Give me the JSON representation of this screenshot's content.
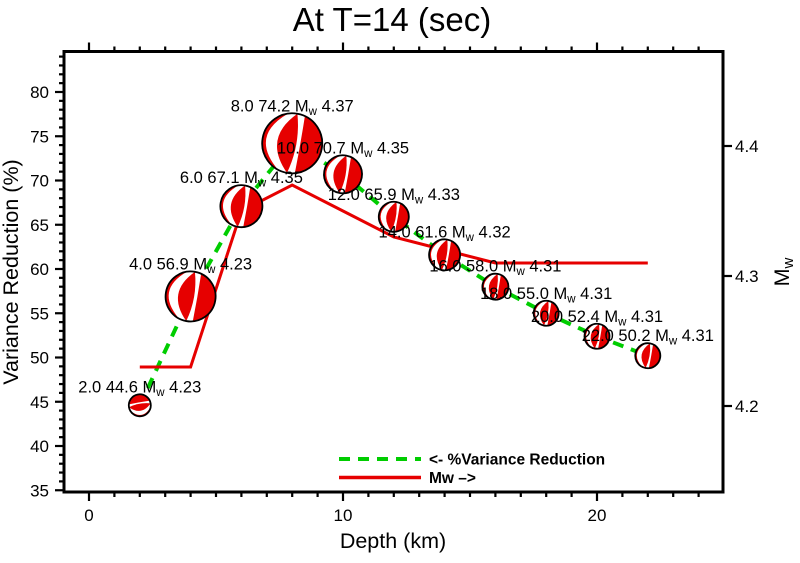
{
  "title": "At T=14 (sec)",
  "axes": {
    "x": {
      "label": "Depth (km)",
      "major_ticks": [
        0,
        10,
        20
      ],
      "minor_step": 1,
      "minor_min": 0,
      "minor_max": 24
    },
    "y_left": {
      "label": "Variance Reduction (%)",
      "major_ticks": [
        35,
        40,
        45,
        50,
        55,
        60,
        65,
        70,
        75,
        80
      ],
      "minor_step": 1,
      "minor_min": 35,
      "minor_max": 84
    },
    "y_right": {
      "label_main": "M",
      "label_sub": "w",
      "major_ticks": [
        4.2,
        4.3,
        4.4
      ]
    }
  },
  "legend": {
    "vr_label": "<- %Variance Reduction",
    "mw_label": "Mw –>"
  },
  "colors": {
    "vr_line": "#00CD00",
    "mw_line": "#E60000",
    "ball_fill": "#E60000",
    "frame": "#000000"
  },
  "chart_data": {
    "type": "line",
    "xlabel": "Depth (km)",
    "ylabel_left": "Variance Reduction (%)",
    "ylabel_right": "Mw",
    "x_depth_km": [
      2,
      4,
      6,
      8,
      10,
      12,
      14,
      16,
      18,
      20,
      22
    ],
    "series": [
      {
        "name": "%Variance Reduction",
        "axis": "left",
        "style": "dashed",
        "color": "#00CD00",
        "values": [
          44.6,
          56.9,
          67.1,
          74.2,
          70.7,
          65.9,
          61.6,
          58.0,
          55.0,
          52.4,
          50.2
        ]
      },
      {
        "name": "Mw",
        "axis": "right",
        "style": "solid",
        "color": "#E60000",
        "values": [
          4.23,
          4.23,
          4.35,
          4.37,
          4.35,
          4.33,
          4.32,
          4.31,
          4.31,
          4.31,
          4.31
        ]
      }
    ],
    "points": [
      {
        "depth": 2.0,
        "vr": 44.6,
        "mw": 4.23,
        "radius_px": 11,
        "rotation_deg": -100
      },
      {
        "depth": 4.0,
        "vr": 56.9,
        "mw": 4.23,
        "radius_px": 25,
        "rotation_deg": 10
      },
      {
        "depth": 6.0,
        "vr": 67.1,
        "mw": 4.35,
        "radius_px": 21,
        "rotation_deg": 10
      },
      {
        "depth": 8.0,
        "vr": 74.2,
        "mw": 4.37,
        "radius_px": 30,
        "rotation_deg": 10
      },
      {
        "depth": 10.0,
        "vr": 70.7,
        "mw": 4.35,
        "radius_px": 19,
        "rotation_deg": 10
      },
      {
        "depth": 12.0,
        "vr": 65.9,
        "mw": 4.33,
        "radius_px": 15,
        "rotation_deg": 10
      },
      {
        "depth": 14.0,
        "vr": 61.6,
        "mw": 4.32,
        "radius_px": 15.5,
        "rotation_deg": 10
      },
      {
        "depth": 16.0,
        "vr": 58.0,
        "mw": 4.31,
        "radius_px": 13,
        "rotation_deg": 10
      },
      {
        "depth": 18.0,
        "vr": 55.0,
        "mw": 4.31,
        "radius_px": 12.5,
        "rotation_deg": 10
      },
      {
        "depth": 20.0,
        "vr": 52.4,
        "mw": 4.31,
        "radius_px": 12.5,
        "rotation_deg": 10
      },
      {
        "depth": 22.0,
        "vr": 50.2,
        "mw": 4.31,
        "radius_px": 12.5,
        "rotation_deg": 10
      }
    ],
    "x_range": [
      -1.0,
      25.0
    ],
    "y_left_range": [
      34.8,
      84.6
    ],
    "y_right_range": [
      4.134,
      4.473
    ],
    "grid": false,
    "legend_position": "bottom-center-inside"
  }
}
